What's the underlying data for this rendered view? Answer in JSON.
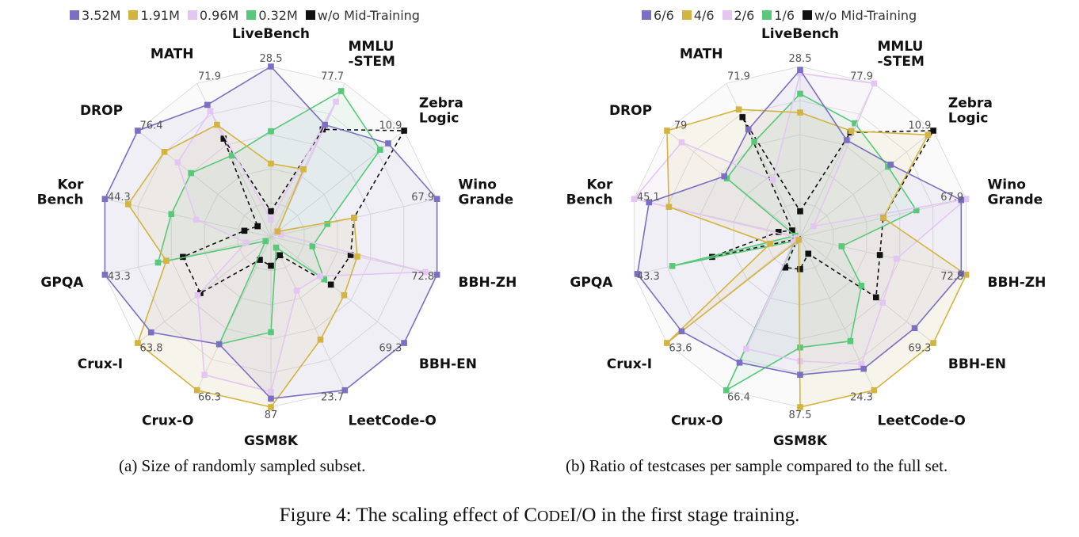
{
  "chart_data": [
    {
      "type": "radar",
      "caption": "(a) Size of randomly sampled subset.",
      "categories": [
        [
          "LiveBench"
        ],
        [
          "MMLU",
          "-STEM"
        ],
        [
          "Zebra",
          "Logic"
        ],
        [
          "Wino",
          "Grande"
        ],
        [
          "BBH-ZH"
        ],
        [
          "BBH-EN"
        ],
        [
          "LeetCode-O"
        ],
        [
          "GSM8K"
        ],
        [
          "Crux-O"
        ],
        [
          "Crux-I"
        ],
        [
          "GPQA"
        ],
        [
          "Kor",
          "Bench"
        ],
        [
          "DROP"
        ],
        [
          "MATH"
        ]
      ],
      "max_labels": [
        "28.5",
        "77.7",
        "10.9",
        "67.9",
        "72.8",
        "69.3",
        "23.7",
        "87",
        "66.3",
        "63.8",
        "43.3",
        "44.3",
        "76.4",
        "71.9"
      ],
      "series": [
        {
          "name": "3.52M",
          "color": "#7b6fc2",
          "dashed": false,
          "values": [
            1.0,
            0.73,
            0.88,
            1.0,
            1.0,
            1.0,
            1.0,
            0.95,
            0.7,
            0.9,
            1.0,
            1.0,
            1.0,
            0.86
          ]
        },
        {
          "name": "1.91M",
          "color": "#d4b441",
          "dashed": false,
          "values": [
            0.43,
            0.44,
            0.05,
            0.5,
            0.52,
            0.55,
            0.67,
            1.0,
            1.0,
            1.0,
            0.63,
            0.86,
            0.8,
            0.73
          ]
        },
        {
          "name": "0.96M",
          "color": "#e4c6f2",
          "dashed": false,
          "values": [
            0.1,
            0.88,
            0.04,
            0.06,
            0.93,
            0.37,
            0.35,
            0.91,
            0.9,
            0.55,
            0.15,
            0.45,
            0.7,
            0.82
          ]
        },
        {
          "name": "0.32M",
          "color": "#58c97a",
          "dashed": false,
          "values": [
            0.62,
            0.95,
            0.82,
            0.34,
            0.25,
            0.4,
            0.07,
            0.56,
            0.7,
            0.04,
            0.68,
            0.6,
            0.6,
            0.53
          ]
        },
        {
          "name": "w/o Mid-Training",
          "color": "#111111",
          "dashed": true,
          "values": [
            0.15,
            0.7,
            1.0,
            0.5,
            0.48,
            0.45,
            0.12,
            0.17,
            0.15,
            0.53,
            0.53,
            0.16,
            0.1,
            0.64
          ]
        }
      ]
    },
    {
      "type": "radar",
      "caption": "(b) Ratio of testcases per sample compared to the full set.",
      "categories": [
        [
          "LiveBench"
        ],
        [
          "MMLU",
          "-STEM"
        ],
        [
          "Zebra",
          "Logic"
        ],
        [
          "Wino",
          "Grande"
        ],
        [
          "BBH-ZH"
        ],
        [
          "BBH-EN"
        ],
        [
          "LeetCode-O"
        ],
        [
          "GSM8K"
        ],
        [
          "Crux-O"
        ],
        [
          "Crux-I"
        ],
        [
          "GPQA"
        ],
        [
          "Kor",
          "Bench"
        ],
        [
          "DROP"
        ],
        [
          "MATH"
        ]
      ],
      "max_labels": [
        "28.5",
        "77.9",
        "10.9",
        "67.9",
        "72.8",
        "69.3",
        "24.3",
        "87.5",
        "66.4",
        "63.6",
        "43.3",
        "45.1",
        "79",
        "71.9"
      ],
      "series": [
        {
          "name": "6/6",
          "color": "#7b6fc2",
          "dashed": false,
          "values": [
            0.98,
            0.63,
            0.68,
            0.97,
            0.97,
            0.86,
            0.86,
            0.81,
            0.82,
            0.89,
            0.98,
            0.91,
            0.57,
            0.7
          ]
        },
        {
          "name": "4/6",
          "color": "#d4b441",
          "dashed": false,
          "values": [
            0.73,
            0.69,
            0.96,
            0.5,
            1.0,
            1.0,
            1.0,
            1.0,
            0.02,
            1.0,
            0.18,
            0.79,
            1.0,
            0.83
          ]
        },
        {
          "name": "2/6",
          "color": "#e4c6f2",
          "dashed": false,
          "values": [
            0.96,
            1.0,
            0.1,
            1.0,
            0.58,
            0.62,
            0.83,
            0.73,
            0.73,
            0.05,
            0.02,
            1.0,
            0.89,
            0.37
          ]
        },
        {
          "name": "1/6",
          "color": "#58c97a",
          "dashed": false,
          "values": [
            0.84,
            0.74,
            0.66,
            0.7,
            0.25,
            0.46,
            0.68,
            0.65,
            1.0,
            0.04,
            0.77,
            0.03,
            0.55,
            0.62
          ]
        },
        {
          "name": "w/o Mid-Training",
          "color": "#111111",
          "dashed": true,
          "values": [
            0.15,
            0.68,
            1.0,
            0.5,
            0.48,
            0.57,
            0.11,
            0.19,
            0.2,
            0.02,
            0.53,
            0.13,
            0.06,
            0.78
          ]
        }
      ]
    }
  ],
  "figure_caption_prefix": "Figure 4: The scaling effect of C",
  "figure_caption_smallcaps": "ODE",
  "figure_caption_suffix": "I/O in the first stage training."
}
